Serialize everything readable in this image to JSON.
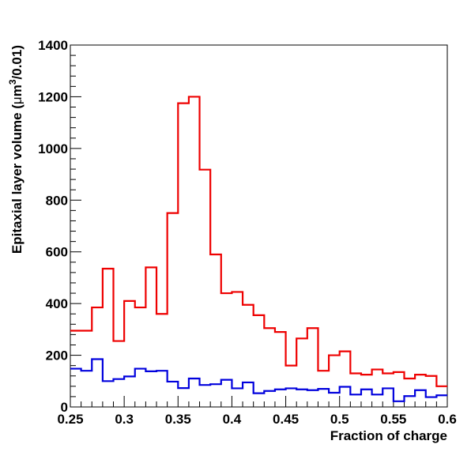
{
  "chart_data": {
    "type": "histogram",
    "xlabel": "Fraction of charge",
    "ylabel": {
      "prefix": "Epitaxial layer volume (",
      "mu": "μ",
      "unit": "m",
      "sup": "3",
      "suffix": "/0.01)"
    },
    "xlim": [
      0.25,
      0.6
    ],
    "ylim": [
      0,
      1400
    ],
    "x_ticks": [
      0.25,
      0.3,
      0.35,
      0.4,
      0.45,
      0.5,
      0.55,
      0.6
    ],
    "x_tick_labels": [
      "0.25",
      "0.3",
      "0.35",
      "0.4",
      "0.45",
      "0.5",
      "0.55",
      "0.6"
    ],
    "y_ticks": [
      0,
      200,
      400,
      600,
      800,
      1000,
      1200,
      1400
    ],
    "y_tick_labels": [
      "0",
      "200",
      "400",
      "600",
      "800",
      "1000",
      "1200",
      "1400"
    ],
    "bin_width": 0.01,
    "bin_edges_start": 0.25,
    "grid": false,
    "series": [
      {
        "color": "#ee0000",
        "values": [
          295,
          295,
          385,
          535,
          255,
          410,
          385,
          540,
          360,
          750,
          1175,
          1200,
          918,
          590,
          440,
          445,
          395,
          355,
          305,
          290,
          160,
          265,
          305,
          140,
          200,
          215,
          130,
          125,
          145,
          130,
          135,
          110,
          125,
          120,
          80
        ]
      },
      {
        "color": "#0000dd",
        "values": [
          148,
          140,
          185,
          100,
          108,
          118,
          148,
          138,
          140,
          98,
          73,
          110,
          85,
          88,
          105,
          72,
          95,
          53,
          62,
          68,
          72,
          68,
          65,
          70,
          55,
          78,
          48,
          68,
          48,
          72,
          22,
          42,
          65,
          38,
          45
        ]
      }
    ]
  }
}
